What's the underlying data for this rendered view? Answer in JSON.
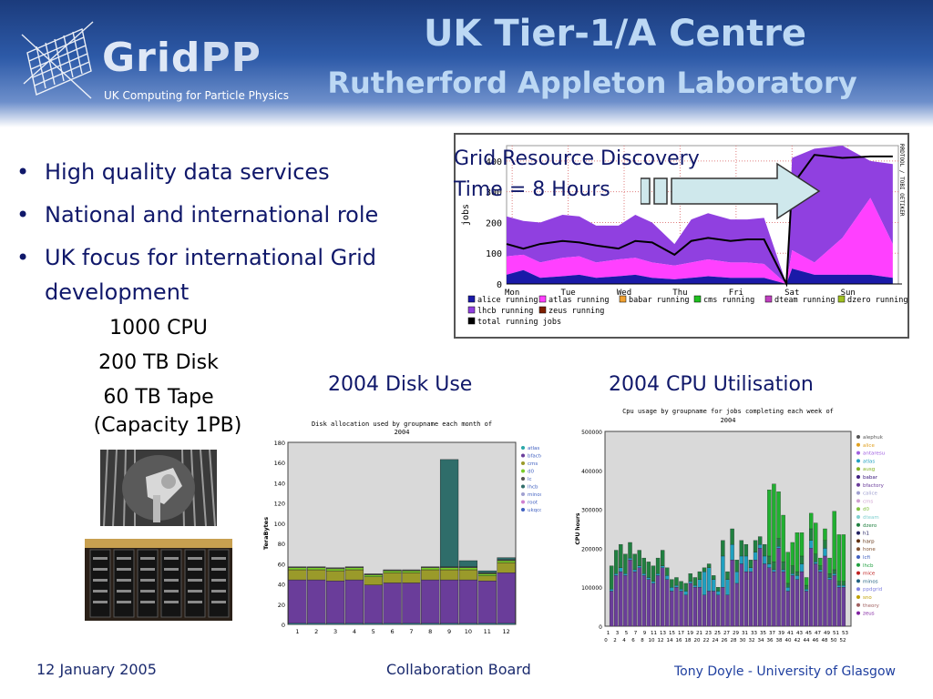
{
  "header": {
    "logo_text_a": "Grid",
    "logo_text_b": "PP",
    "logo_tagline": "UK Computing for Particle Physics",
    "title": "UK Tier-1/A Centre",
    "subtitle": "Rutherford Appleton Laboratory"
  },
  "bullets": [
    "High quality data services",
    "National and international role",
    "UK focus for international Grid development"
  ],
  "specs": [
    "1000 CPU",
    "200 TB Disk",
    "60 TB Tape",
    "(Capacity 1PB)"
  ],
  "annotation": {
    "line1": "Grid Resource Discovery",
    "line2": "Time = 8 Hours"
  },
  "captions": {
    "disk": "2004 Disk Use",
    "cpu": "2004 CPU Utilisation"
  },
  "footer": {
    "date": "12 January 2005",
    "center": "Collaboration Board",
    "author": "Tony Doyle - University of Glasgow"
  },
  "colors": {
    "header_dark": "#1b3b7c",
    "title": "#bcd8f4",
    "body_text": "#10186a"
  },
  "chart_data": [
    {
      "type": "area",
      "ylabel": "jobs",
      "x_categories": [
        "Mon",
        "Tue",
        "Wed",
        "Thu",
        "Fri",
        "Sat",
        "Sun"
      ],
      "yticks": [
        0,
        100,
        200,
        300,
        400
      ],
      "ylim": [
        0,
        450
      ],
      "side_label": "RRDTOOL / TOBI OETIKER",
      "legend": [
        {
          "name": "alice running",
          "color": "#1a1aa8"
        },
        {
          "name": "atlas running",
          "color": "#ff40ff"
        },
        {
          "name": "babar running",
          "color": "#f0a030"
        },
        {
          "name": "cms running",
          "color": "#20c020"
        },
        {
          "name": "dteam running",
          "color": "#c040c0"
        },
        {
          "name": "dzero running",
          "color": "#a0c020"
        },
        {
          "name": "lhcb running",
          "color": "#9040e0"
        },
        {
          "name": "zeus running",
          "color": "#802000"
        },
        {
          "name": "total running jobs",
          "color": "#000000"
        }
      ],
      "x": [
        0,
        0.3,
        0.6,
        1,
        1.3,
        1.6,
        2,
        2.3,
        2.6,
        3,
        3.3,
        3.6,
        4,
        4.3,
        4.6,
        5,
        5.1,
        5.5,
        6,
        6.5,
        6.9
      ],
      "series": [
        {
          "name": "alice running",
          "values": [
            30,
            45,
            20,
            25,
            30,
            20,
            25,
            30,
            20,
            15,
            20,
            25,
            20,
            20,
            20,
            0,
            50,
            30,
            30,
            30,
            20
          ]
        },
        {
          "name": "atlas running",
          "values": [
            60,
            50,
            50,
            60,
            60,
            50,
            55,
            55,
            50,
            45,
            50,
            55,
            50,
            50,
            45,
            0,
            60,
            40,
            120,
            250,
            110
          ]
        },
        {
          "name": "lhcb running",
          "values": [
            130,
            110,
            130,
            140,
            130,
            120,
            110,
            140,
            130,
            70,
            140,
            150,
            140,
            140,
            150,
            0,
            300,
            370,
            300,
            120,
            260
          ]
        },
        {
          "name": "total running jobs",
          "values": [
            130,
            115,
            130,
            140,
            135,
            125,
            115,
            140,
            135,
            95,
            140,
            150,
            140,
            145,
            145,
            0,
            320,
            420,
            410,
            415,
            415
          ]
        }
      ]
    },
    {
      "type": "bar",
      "title": "Disk allocation used by groupname each month of 2004",
      "ylabel": "TeraBytes",
      "categories": [
        "1",
        "2",
        "3",
        "4",
        "5",
        "6",
        "7",
        "8",
        "9",
        "10",
        "11",
        "12"
      ],
      "ylim": [
        0,
        180
      ],
      "yticks": [
        0,
        20,
        40,
        60,
        80,
        100,
        120,
        140,
        160,
        180
      ],
      "legend": [
        "atlas",
        "bfactory",
        "cms",
        "d0",
        "lc",
        "lhcb",
        "minos",
        "root",
        "ukqcd"
      ],
      "series": [
        {
          "name": "atlas",
          "color": "#2aa7a7",
          "values": [
            1,
            1,
            1,
            1,
            1,
            1,
            1,
            1,
            1,
            1,
            1,
            1
          ]
        },
        {
          "name": "bfactory",
          "color": "#6a3d9a",
          "values": [
            43,
            43,
            42,
            43,
            38,
            40,
            40,
            43,
            43,
            43,
            42,
            50
          ]
        },
        {
          "name": "cms",
          "color": "#9a9a2a",
          "values": [
            10,
            10,
            10,
            10,
            8,
            10,
            10,
            10,
            10,
            10,
            5,
            10
          ]
        },
        {
          "name": "d0",
          "color": "#7acc2a",
          "values": [
            2,
            2,
            2,
            2,
            2,
            2,
            2,
            2,
            2,
            2,
            2,
            2
          ]
        },
        {
          "name": "lc",
          "color": "#555555",
          "values": [
            1,
            1,
            1,
            1,
            1,
            1,
            1,
            1,
            1,
            1,
            1,
            1
          ]
        },
        {
          "name": "lhcb",
          "color": "#2f6d6a",
          "values": [
            0,
            0,
            0,
            0,
            0,
            0,
            0,
            0,
            106,
            6,
            2,
            2
          ]
        }
      ]
    },
    {
      "type": "bar",
      "title": "Cpu usage by groupname for jobs completing each week of 2004",
      "ylabel": "CPU hours",
      "ylim": [
        0,
        500000
      ],
      "yticks": [
        0,
        100000,
        200000,
        300000,
        400000,
        500000
      ],
      "xticks_top": [
        "1",
        "3",
        "5",
        "7",
        "9",
        "11",
        "13",
        "15",
        "17",
        "19",
        "21",
        "23",
        "25",
        "27",
        "29",
        "31",
        "33",
        "35",
        "37",
        "39",
        "41",
        "43",
        "45",
        "47",
        "49",
        "51",
        "53"
      ],
      "xticks_bottom": [
        "0",
        "2",
        "4",
        "6",
        "8",
        "10",
        "12",
        "14",
        "16",
        "18",
        "20",
        "22",
        "24",
        "26",
        "28",
        "30",
        "32",
        "34",
        "36",
        "38",
        "40",
        "42",
        "44",
        "46",
        "48",
        "50",
        "52"
      ],
      "legend": [
        "alephuk",
        "alice",
        "antaresu",
        "atlas",
        "ausg",
        "babar",
        "bfactory",
        "calice",
        "cms",
        "d0",
        "dteam",
        "dzero",
        "h1",
        "harp",
        "hone",
        "lcfi",
        "lhcb",
        "mice",
        "minos",
        "ppdgrid",
        "sno",
        "theory",
        "zeus"
      ],
      "legend_colors": [
        "#555555",
        "#e0a020",
        "#a060e0",
        "#20a0c0",
        "#80b020",
        "#402080",
        "#6a3d9a",
        "#a0a0d0",
        "#d0a0d0",
        "#80c040",
        "#80d0d0",
        "#208040",
        "#202060",
        "#603010",
        "#805030",
        "#4060c0",
        "#20a040",
        "#c02020",
        "#206080",
        "#8080e0",
        "#c0a000",
        "#a06060",
        "#8020a0"
      ],
      "series": [
        {
          "name": "babar",
          "color": "#6a3d9a",
          "values": [
            90000,
            130000,
            140000,
            130000,
            170000,
            140000,
            150000,
            130000,
            120000,
            110000,
            130000,
            150000,
            120000,
            90000,
            100000,
            90000,
            80000,
            110000,
            100000,
            100000,
            80000,
            90000,
            90000,
            80000,
            100000,
            80000,
            170000,
            110000,
            160000,
            140000,
            140000,
            170000,
            200000,
            160000,
            150000,
            140000,
            200000,
            140000,
            90000,
            130000,
            120000,
            140000,
            90000,
            200000,
            160000,
            140000,
            180000,
            120000,
            130000,
            100000,
            100000
          ]
        },
        {
          "name": "alice",
          "color": "#20a0c0",
          "values": [
            5000,
            5000,
            10000,
            5000,
            5000,
            5000,
            5000,
            5000,
            5000,
            5000,
            5000,
            5000,
            10000,
            10000,
            5000,
            5000,
            10000,
            5000,
            5000,
            20000,
            60000,
            60000,
            30000,
            10000,
            80000,
            40000,
            40000,
            30000,
            20000,
            40000,
            10000,
            20000,
            10000,
            20000,
            10000,
            5000,
            5000,
            5000,
            10000,
            5000,
            10000,
            20000,
            5000,
            20000,
            5000,
            5000,
            20000,
            5000,
            5000,
            5000,
            5000
          ]
        },
        {
          "name": "dzero",
          "color": "#208040",
          "values": [
            60000,
            60000,
            60000,
            50000,
            40000,
            40000,
            40000,
            40000,
            40000,
            40000,
            40000,
            40000,
            20000,
            20000,
            20000,
            20000,
            20000,
            20000,
            20000,
            20000,
            10000,
            10000,
            10000,
            10000,
            40000,
            20000,
            40000,
            30000,
            40000,
            30000,
            20000,
            30000,
            20000,
            30000,
            20000,
            20000,
            20000,
            20000,
            10000,
            20000,
            10000,
            20000,
            10000,
            30000,
            20000,
            10000,
            20000,
            10000,
            10000,
            10000,
            10000
          ]
        },
        {
          "name": "lhcb",
          "color": "#20b030",
          "values": [
            0,
            0,
            0,
            0,
            0,
            0,
            0,
            0,
            0,
            0,
            0,
            0,
            0,
            0,
            0,
            0,
            0,
            0,
            0,
            0,
            0,
            0,
            0,
            0,
            0,
            0,
            0,
            0,
            0,
            0,
            0,
            0,
            0,
            0,
            170000,
            200000,
            120000,
            120000,
            80000,
            60000,
            100000,
            60000,
            20000,
            40000,
            80000,
            20000,
            30000,
            40000,
            150000,
            120000,
            120000
          ]
        }
      ]
    }
  ]
}
